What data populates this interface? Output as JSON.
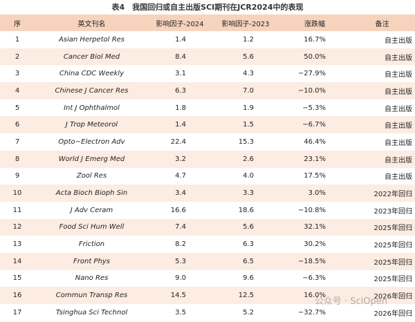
{
  "title": "表4　我国回归或自主出版SCI期刊在JCR2024中的表现",
  "table": {
    "headers": [
      "序",
      "英文刊名",
      "影响因子-2024",
      "影响因子-2023",
      "涨跌幅",
      "备注"
    ],
    "rows": [
      [
        "1",
        "Asian Herpetol Res",
        "1.4",
        "1.2",
        "16.7%",
        "自主出版"
      ],
      [
        "2",
        "Cancer Biol Med",
        "8.4",
        "5.6",
        "50.0%",
        "自主出版"
      ],
      [
        "3",
        "China CDC Weekly",
        "3.1",
        "4.3",
        "−27.9%",
        "自主出版"
      ],
      [
        "4",
        "Chinese J Cancer Res",
        "6.3",
        "7.0",
        "−10.0%",
        "自主出版"
      ],
      [
        "5",
        "Int J Ophthalmol",
        "1.8",
        "1.9",
        "−5.3%",
        "自主出版"
      ],
      [
        "6",
        "J Trop Meteorol",
        "1.4",
        "1.5",
        "−6.7%",
        "自主出版"
      ],
      [
        "7",
        "Opto−Electron Adv",
        "22.4",
        "15.3",
        "46.4%",
        "自主出版"
      ],
      [
        "8",
        "World J Emerg Med",
        "3.2",
        "2.6",
        "23.1%",
        "自主出版"
      ],
      [
        "9",
        "Zool Res",
        "4.7",
        "4.0",
        "17.5%",
        "自主出版"
      ],
      [
        "10",
        "Acta Bioch Bioph Sin",
        "3.4",
        "3.3",
        "3.0%",
        "2022年回归"
      ],
      [
        "11",
        "J Adv Ceram",
        "16.6",
        "18.6",
        "−10.8%",
        "2023年回归"
      ],
      [
        "12",
        "Food Sci Hum Well",
        "7.4",
        "5.6",
        "32.1%",
        "2025年回归"
      ],
      [
        "13",
        "Friction",
        "8.2",
        "6.3",
        "30.2%",
        "2025年回归"
      ],
      [
        "14",
        "Front Phys",
        "5.3",
        "6.5",
        "−18.5%",
        "2025年回归"
      ],
      [
        "15",
        "Nano Res",
        "9.0",
        "9.6",
        "−6.3%",
        "2025年回归"
      ],
      [
        "16",
        "Commun Transp Res",
        "14.5",
        "12.5",
        "16.0%",
        "2026年回归"
      ],
      [
        "17",
        "Tsinghua Sci Technol",
        "3.5",
        "5.2",
        "−32.7%",
        "2026年回归"
      ]
    ]
  },
  "watermark": "公众号 · SciOpen"
}
